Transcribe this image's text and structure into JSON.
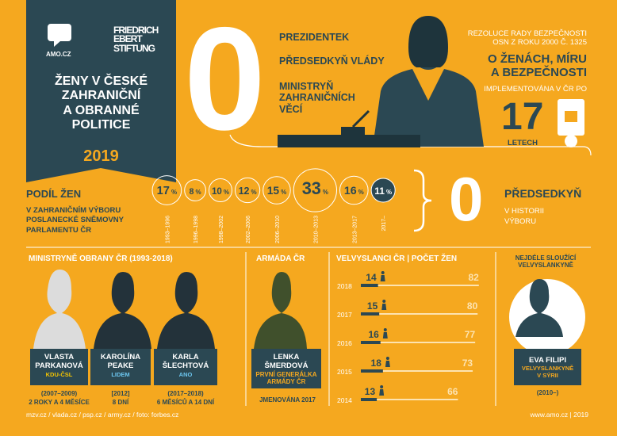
{
  "header": {
    "logo_amo": "AMO.CZ",
    "logo_fes": [
      "FRIEDRICH",
      "EBERT",
      "STIFTUNG"
    ],
    "title": [
      "ŽENY V ČESKÉ",
      "ZAHRANIČNÍ",
      "A OBRANNÉ",
      "POLITICE"
    ],
    "year": "2019"
  },
  "zero_block": {
    "number": "0",
    "items": [
      "PREZIDENTEK",
      "PŘEDSEDKYŇ VLÁDY",
      "MINISTRYŇ ZAHRANIČNÍCH VĚCÍ"
    ]
  },
  "resolution": {
    "intro": [
      "REZOLUCE RADY BEZPEČNOSTI",
      "OSN Z ROKU 2000 Č. 1325"
    ],
    "title": [
      "O ŽENÁCH, MÍRU",
      "A BEZPEČNOSTI"
    ],
    "subtitle": "IMPLEMENTOVÁNA V ČR PO",
    "years": "17",
    "years_unit": "LETECH"
  },
  "committee": {
    "title": "PODÍL ŽEN",
    "subtitle": [
      "V ZAHRANIČNÍM VÝBORU",
      "POSLANECKÉ SNĚMOVNY",
      "PARLAMENTU ČR"
    ],
    "unit": "%",
    "values": [
      17,
      8,
      10,
      12,
      15,
      33,
      16,
      11
    ],
    "periods": [
      "1993–1996",
      "1996–1998",
      "1998–2002",
      "2002–2006",
      "2006–2010",
      "2010–2013",
      "2013–2017",
      "2017–"
    ],
    "chairs": "0",
    "chairs_label": "PŘEDSEDKYŇ",
    "chairs_sub": [
      "V HISTORII",
      "VÝBORU"
    ]
  },
  "ministers": {
    "title": "MINISTRYNĚ OBRANY ČR (1993-2018)",
    "people": [
      {
        "name": [
          "VLASTA",
          "PARKANOVÁ"
        ],
        "party": "KDU-ČSL",
        "term": "(2007–2009)",
        "duration": "2 ROKY A 4 MĚSÍCE"
      },
      {
        "name": [
          "KAROLÍNA",
          "PEAKE"
        ],
        "party": "LIDEM",
        "term": "[2012]",
        "duration": "8 DNÍ"
      },
      {
        "name": [
          "KARLA",
          "ŠLECHTOVÁ"
        ],
        "party": "ANO",
        "term": "(2017–2018)",
        "duration": "6 MĚSÍCŮ A 14 DNÍ"
      }
    ]
  },
  "army": {
    "title": "ARMÁDA ČR",
    "name": [
      "LENKA",
      "ŠMERDOVÁ"
    ],
    "role": [
      "PRVNÍ GENERÁLKA",
      "ARMÁDY ČR"
    ],
    "note": "JMENOVÁNA 2017"
  },
  "ambassadors": {
    "title": "VELVYSLANCI ČR",
    "subtitle": "POČET ŽEN",
    "years": [
      "2018",
      "2017",
      "2016",
      "2015",
      "2014"
    ],
    "women": [
      14,
      15,
      16,
      18,
      13
    ],
    "men": [
      82,
      80,
      77,
      73,
      66
    ]
  },
  "longest": {
    "title": [
      "NEJDÉLE SLOUŽÍCÍ",
      "VELVYSLANKYNĚ"
    ],
    "name": "EVA FILIPI",
    "role": [
      "VELVYSLANKYNĚ",
      "V SÝRII"
    ],
    "term": "(2010–)"
  },
  "footer": {
    "sources": "mzv.cz / vlada.cz / psp.cz / army.cz / foto: forbes.cz",
    "site": "www.amo.cz | 2019"
  }
}
